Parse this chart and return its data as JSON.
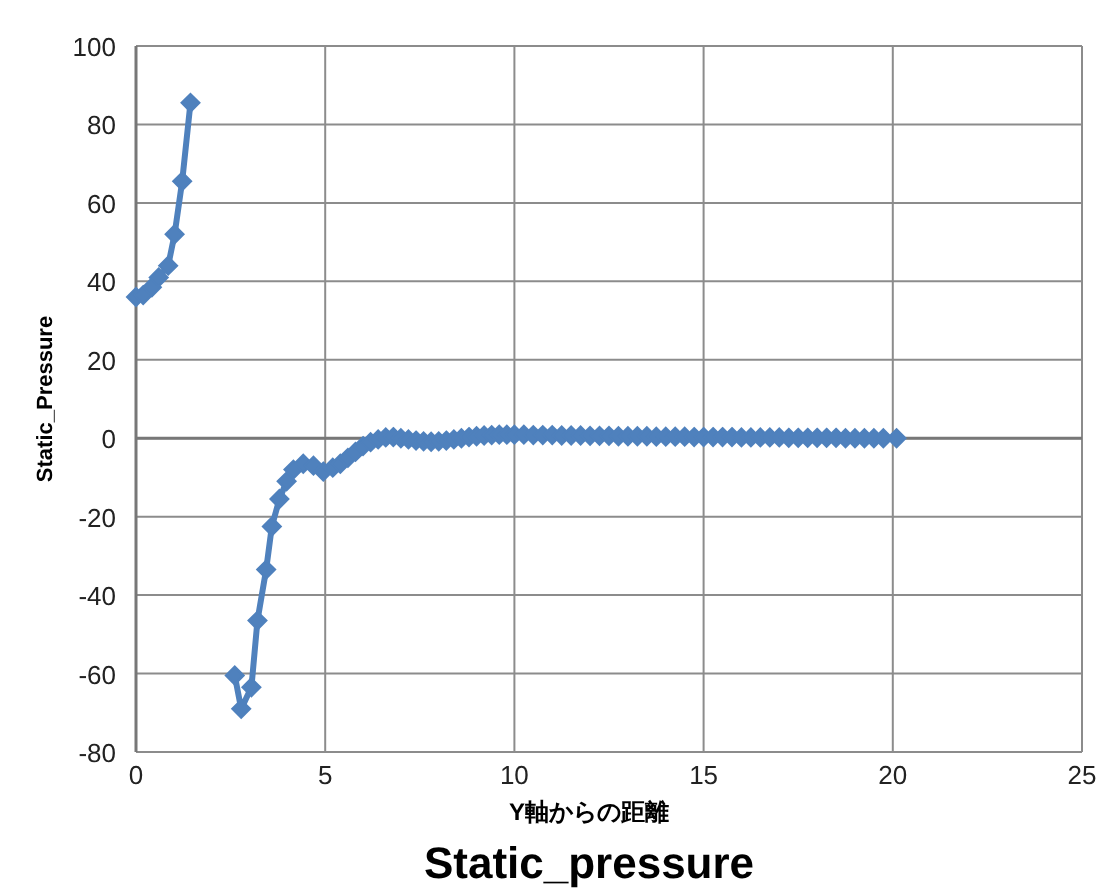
{
  "chart_data": {
    "type": "line",
    "title": "Static_pressure",
    "xlabel": "Y軸からの距離",
    "ylabel": "Static_Pressure",
    "x": [
      0,
      0.19,
      0.42,
      0.6,
      0.85,
      1.02,
      1.22,
      1.44,
      2.0,
      2.61,
      2.78,
      3.05,
      3.21,
      3.44,
      3.59,
      3.79,
      3.98,
      4.16,
      4.42,
      4.69,
      4.95,
      5.2,
      5.4,
      5.6,
      5.8,
      6.0,
      6.2,
      6.4,
      6.6,
      6.8,
      7.0,
      7.2,
      7.4,
      7.6,
      7.8,
      8.0,
      8.2,
      8.4,
      8.6,
      8.8,
      9.0,
      9.2,
      9.4,
      9.6,
      9.8,
      10.0,
      10.25,
      10.5,
      10.75,
      11.0,
      11.25,
      11.5,
      11.75,
      12.0,
      12.25,
      12.5,
      12.75,
      13.0,
      13.25,
      13.5,
      13.75,
      14.0,
      14.25,
      14.5,
      14.75,
      15.0,
      15.25,
      15.5,
      15.75,
      16.0,
      16.25,
      16.5,
      16.75,
      17.0,
      17.25,
      17.5,
      17.75,
      18.0,
      18.25,
      18.5,
      18.75,
      19.0,
      19.25,
      19.5,
      19.75,
      20.1
    ],
    "values": [
      36,
      36.5,
      38.5,
      41,
      44,
      52,
      65.5,
      85.5,
      null,
      -60.5,
      -69,
      -63.5,
      -46.5,
      -33.5,
      -22.5,
      -15.5,
      -11,
      -8,
      -6.5,
      -7,
      -8.5,
      -7.5,
      -6.5,
      -5,
      -3.5,
      -2,
      -1,
      -0.3,
      0.2,
      0.3,
      0,
      -0.3,
      -0.6,
      -0.8,
      -0.9,
      -0.8,
      -0.6,
      -0.3,
      0,
      0.3,
      0.5,
      0.7,
      0.8,
      0.9,
      0.9,
      0.9,
      0.9,
      0.8,
      0.8,
      0.8,
      0.7,
      0.7,
      0.7,
      0.6,
      0.6,
      0.6,
      0.5,
      0.5,
      0.5,
      0.5,
      0.4,
      0.4,
      0.4,
      0.4,
      0.3,
      0.3,
      0.3,
      0.3,
      0.3,
      0.2,
      0.2,
      0.2,
      0.2,
      0.2,
      0.1,
      0.1,
      0.1,
      0.1,
      0.1,
      0.1,
      0,
      0,
      0,
      0,
      0,
      0
    ],
    "color": "#4f81bd",
    "marker": "diamond",
    "line_style": "solid",
    "grid": true,
    "xlim": [
      0,
      25
    ],
    "xticks": [
      0,
      5,
      10,
      15,
      20,
      25
    ],
    "ylim": [
      -80,
      100
    ],
    "yticks": [
      -80,
      -60,
      -40,
      -20,
      0,
      20,
      40,
      60,
      80,
      100
    ]
  }
}
